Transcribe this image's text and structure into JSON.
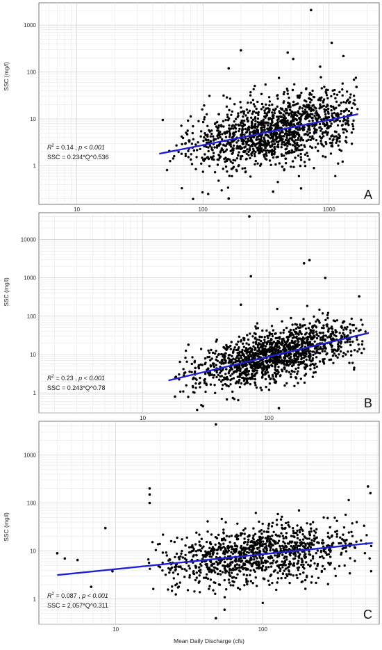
{
  "figure": {
    "xlabel": "Mean Daily Discharge (cfs)"
  },
  "chart_data": [
    {
      "type": "scatter",
      "panel": "A",
      "ylabel": "SSC (mg/l)",
      "xlabel": "",
      "xscale": "log",
      "yscale": "log",
      "xlim": [
        5,
        2500
      ],
      "ylim": [
        0.15,
        3000
      ],
      "x_ticks": [
        10,
        100,
        1000
      ],
      "x_tick_labels": [
        "10",
        "100",
        "1000"
      ],
      "y_ticks": [
        1,
        10,
        100,
        1000
      ],
      "y_tick_labels": [
        "1",
        "10",
        "100",
        "1000"
      ],
      "grid": true,
      "annotation_r2_prefix": "R",
      "annotation_r2_suffix": " = 0.14 , ",
      "annotation_p": "p < 0.001",
      "annotation_eq": "SSC = 0.234*Q^0.536",
      "regression": {
        "a": 0.234,
        "b": 0.536,
        "x_range": [
          45,
          1700
        ],
        "color": "#1f1fd6"
      },
      "point_color": "#000000",
      "scatter_cloud": {
        "x_range": [
          45,
          1700
        ],
        "x_center": 400,
        "n": 1400,
        "log_sd_y": 0.35
      },
      "outliers": [
        {
          "x": 720,
          "y": 2100
        },
        {
          "x": 200,
          "y": 290
        },
        {
          "x": 470,
          "y": 260
        },
        {
          "x": 1050,
          "y": 420
        },
        {
          "x": 160,
          "y": 120
        },
        {
          "x": 520,
          "y": 190
        },
        {
          "x": 850,
          "y": 130
        },
        {
          "x": 1300,
          "y": 220
        },
        {
          "x": 48,
          "y": 9.5
        },
        {
          "x": 110,
          "y": 0.25
        },
        {
          "x": 160,
          "y": 0.2
        },
        {
          "x": 360,
          "y": 0.28
        },
        {
          "x": 600,
          "y": 0.33
        },
        {
          "x": 1650,
          "y": 48
        }
      ]
    },
    {
      "type": "scatter",
      "panel": "B",
      "ylabel": "SSC (mg/l)",
      "xlabel": "",
      "xscale": "log",
      "yscale": "log",
      "xlim": [
        1.5,
        750
      ],
      "ylim": [
        0.3,
        50000
      ],
      "x_ticks": [
        10,
        100
      ],
      "x_tick_labels": [
        "10",
        "100"
      ],
      "y_ticks": [
        1,
        10,
        100,
        1000,
        10000
      ],
      "y_tick_labels": [
        "1",
        "10",
        "100",
        "1000",
        "10000"
      ],
      "grid": true,
      "annotation_r2_prefix": "R",
      "annotation_r2_suffix": " = 0.23 , ",
      "annotation_p": "p < 0.001",
      "annotation_eq": "SSC = 0.243*Q^0.78",
      "regression": {
        "a": 0.243,
        "b": 0.78,
        "x_range": [
          16,
          620
        ],
        "color": "#1f1fd6"
      },
      "point_color": "#000000",
      "scatter_cloud": {
        "x_range": [
          18,
          600
        ],
        "x_center": 110,
        "n": 1400,
        "log_sd_y": 0.33
      },
      "outliers": [
        {
          "x": 70,
          "y": 40000
        },
        {
          "x": 210,
          "y": 2900
        },
        {
          "x": 190,
          "y": 2400
        },
        {
          "x": 72,
          "y": 1100
        },
        {
          "x": 280,
          "y": 1000
        },
        {
          "x": 23,
          "y": 18
        },
        {
          "x": 60,
          "y": 200
        },
        {
          "x": 520,
          "y": 330
        },
        {
          "x": 120,
          "y": 0.4
        },
        {
          "x": 30,
          "y": 0.45
        },
        {
          "x": 18,
          "y": 0.8
        }
      ]
    },
    {
      "type": "scatter",
      "panel": "C",
      "ylabel": "SSC (mg/l)",
      "xlabel": "Mean Daily Discharge (cfs)",
      "xscale": "log",
      "yscale": "log",
      "xlim": [
        3,
        620
      ],
      "ylim": [
        0.3,
        5000
      ],
      "x_ticks": [
        10,
        100
      ],
      "x_tick_labels": [
        "10",
        "100"
      ],
      "y_ticks": [
        1,
        10,
        100,
        1000
      ],
      "y_tick_labels": [
        "1",
        "10",
        "100",
        "1000"
      ],
      "grid": true,
      "annotation_r2_prefix": "R",
      "annotation_r2_suffix": " = 0.087 , ",
      "annotation_p": "p < 0.001",
      "annotation_eq": "SSC = 2.057*Q^0.311",
      "regression": {
        "a": 2.057,
        "b": 0.311,
        "x_range": [
          4,
          560
        ],
        "color": "#1f1fd6"
      },
      "point_color": "#000000",
      "scatter_cloud": {
        "x_range": [
          16,
          550
        ],
        "x_center": 90,
        "n": 1100,
        "log_sd_y": 0.3
      },
      "outliers": [
        {
          "x": 48,
          "y": 4300
        },
        {
          "x": 17,
          "y": 200
        },
        {
          "x": 17,
          "y": 150
        },
        {
          "x": 17,
          "y": 100
        },
        {
          "x": 8.5,
          "y": 30
        },
        {
          "x": 4,
          "y": 9
        },
        {
          "x": 4.5,
          "y": 7
        },
        {
          "x": 5.5,
          "y": 6.5
        },
        {
          "x": 6.8,
          "y": 1.8
        },
        {
          "x": 9.5,
          "y": 3.8
        },
        {
          "x": 520,
          "y": 220
        },
        {
          "x": 540,
          "y": 160
        },
        {
          "x": 48,
          "y": 0.4
        },
        {
          "x": 55,
          "y": 0.6
        }
      ]
    }
  ]
}
